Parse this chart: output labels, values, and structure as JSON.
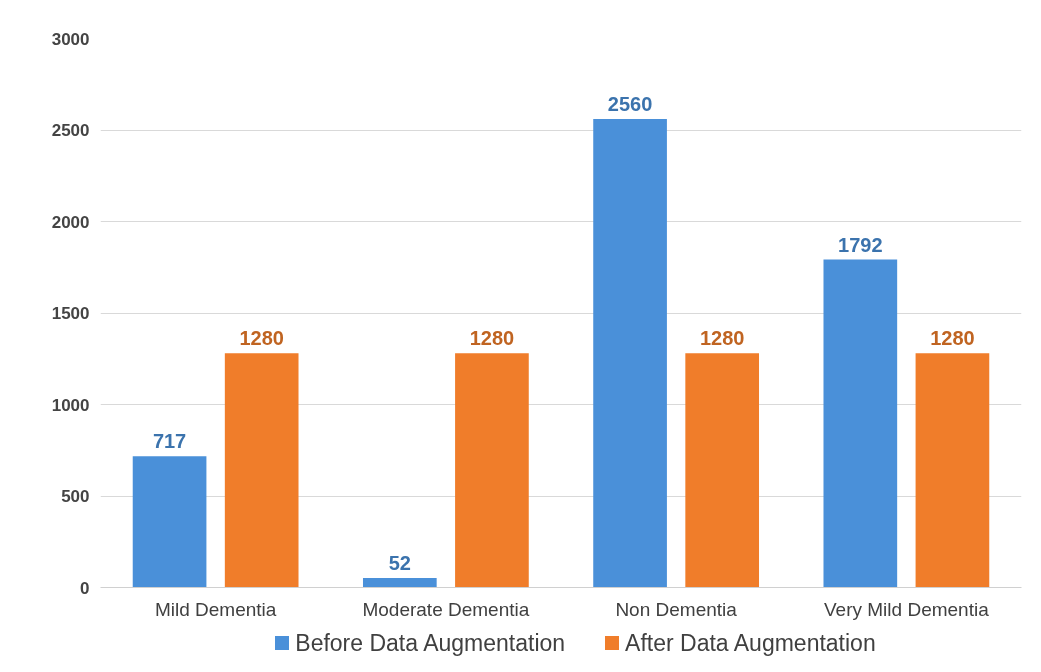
{
  "chart_data": {
    "type": "bar",
    "categories": [
      "Mild Dementia",
      "Moderate Dementia",
      "Non Dementia",
      "Very Mild Dementia"
    ],
    "series": [
      {
        "name": "Before Data Augmentation",
        "color": "#4a90d9",
        "values": [
          717,
          52,
          2560,
          1792
        ]
      },
      {
        "name": "After Data Augmentation",
        "color": "#f07d2a",
        "values": [
          1280,
          1280,
          1280,
          1280
        ]
      }
    ],
    "ylim": [
      0,
      3000
    ],
    "yticks": [
      0,
      500,
      1000,
      1500,
      2000,
      2500,
      3000
    ],
    "grid": "y",
    "legend": "bottom",
    "data_labels": true
  }
}
